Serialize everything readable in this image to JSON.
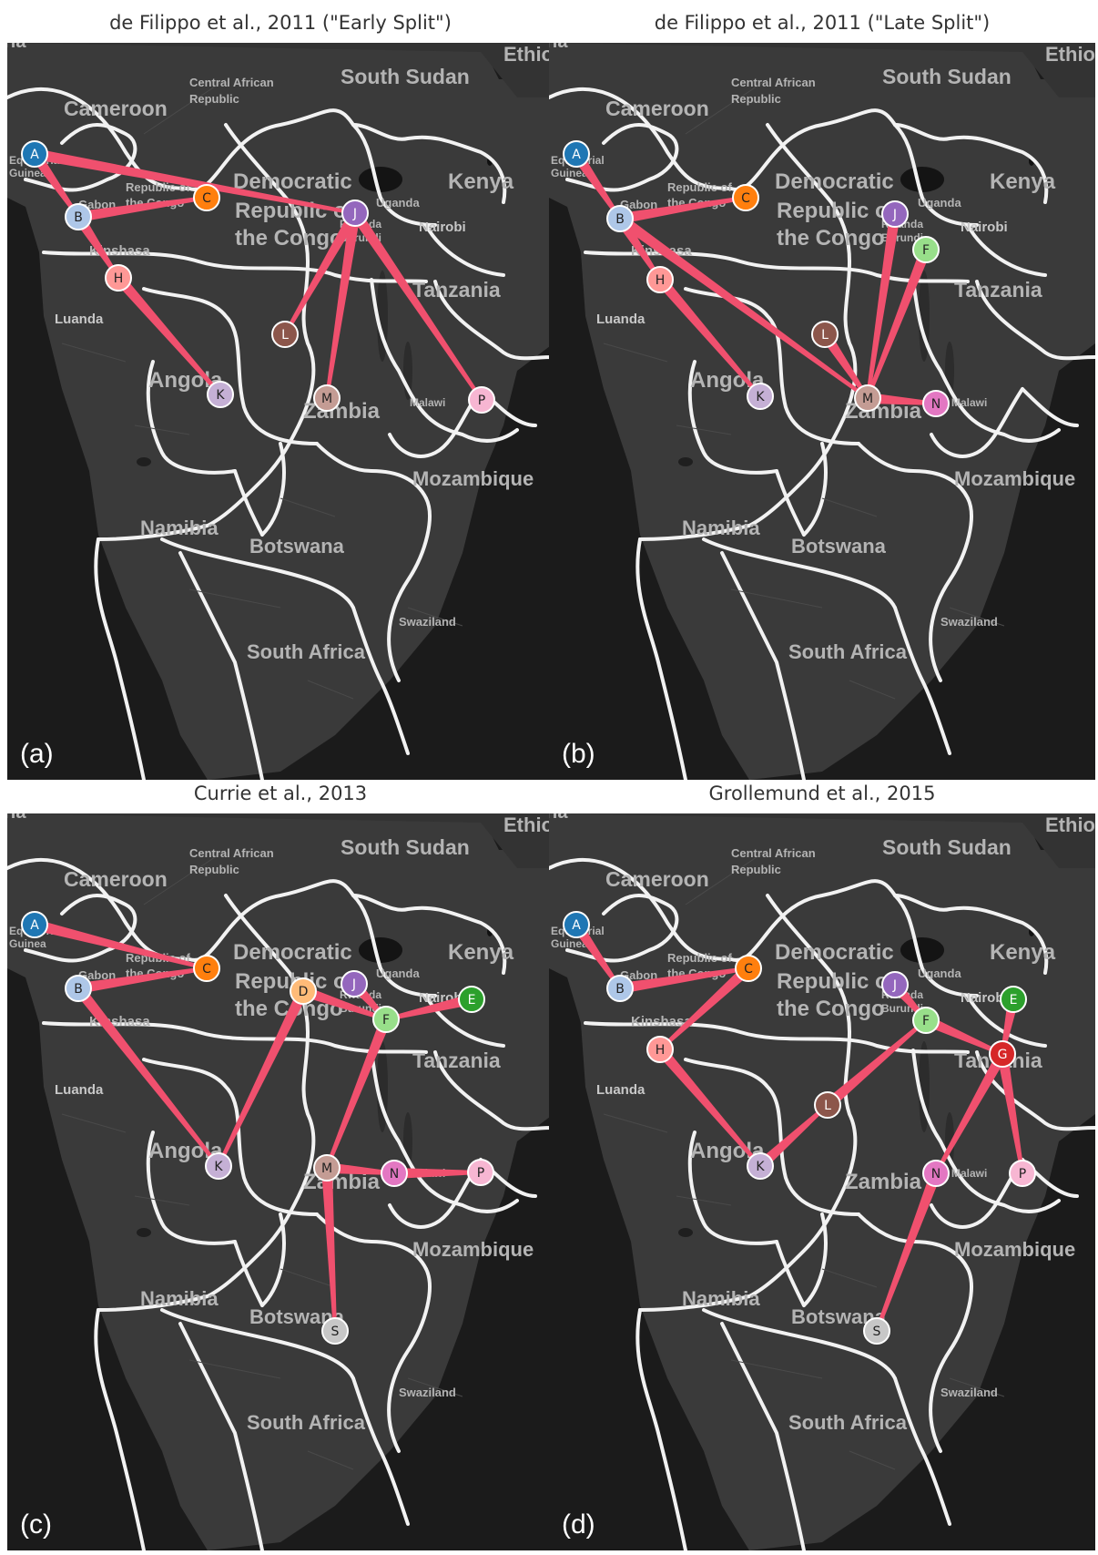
{
  "map": {
    "countries": [
      {
        "name": "Cameroon",
        "size": 23
      },
      {
        "name": "Central African",
        "size": 13
      },
      {
        "name": "Republic",
        "size": 13
      },
      {
        "name": "South Sudan",
        "size": 23
      },
      {
        "name": "Ethiop",
        "size": 22
      },
      {
        "name": "Democratic",
        "size": 24
      },
      {
        "name": "Republic of",
        "size": 24
      },
      {
        "name": "the Congo",
        "size": 24
      },
      {
        "name": "Republic of",
        "size": 13
      },
      {
        "name": "the Congo",
        "size": 13
      },
      {
        "name": "Gabon",
        "size": 13
      },
      {
        "name": "Equatorial",
        "size": 12
      },
      {
        "name": "Guinea",
        "size": 12
      },
      {
        "name": "Uganda",
        "size": 13
      },
      {
        "name": "Kenya",
        "size": 24
      },
      {
        "name": "Rwanda",
        "size": 12
      },
      {
        "name": "Burundi",
        "size": 12
      },
      {
        "name": "Kinshasa",
        "size": 15
      },
      {
        "name": "Tanzania",
        "size": 23
      },
      {
        "name": "Angola",
        "size": 24
      },
      {
        "name": "Zambia",
        "size": 24
      },
      {
        "name": "Malawi",
        "size": 12
      },
      {
        "name": "Mozambique",
        "size": 22
      },
      {
        "name": "Namibia",
        "size": 22
      },
      {
        "name": "Botswana",
        "size": 22
      },
      {
        "name": "Swaziland",
        "size": 13
      },
      {
        "name": "South Africa",
        "size": 22
      },
      {
        "name": "ria",
        "size": 20
      }
    ],
    "cities": [
      "Luanda",
      "Nairobi"
    ]
  },
  "nodes": {
    "A": {
      "label": "A",
      "color": "#1f77b4"
    },
    "B": {
      "label": "B",
      "color": "#aec7e8"
    },
    "C": {
      "label": "C",
      "color": "#ff7f0e"
    },
    "D": {
      "label": "D",
      "color": "#ffbb78"
    },
    "E": {
      "label": "E",
      "color": "#2ca02c"
    },
    "F": {
      "label": "F",
      "color": "#98df8a"
    },
    "G": {
      "label": "G",
      "color": "#d62728"
    },
    "H": {
      "label": "H",
      "color": "#ff9896"
    },
    "J": {
      "label": "J",
      "color": "#9467bd"
    },
    "K": {
      "label": "K",
      "color": "#c5b0d5"
    },
    "L": {
      "label": "L",
      "color": "#8c564b"
    },
    "M": {
      "label": "M",
      "color": "#c49c94"
    },
    "N": {
      "label": "N",
      "color": "#e377c2"
    },
    "P": {
      "label": "P",
      "color": "#f7b6d2"
    },
    "S": {
      "label": "S",
      "color": "#c7c7c7"
    }
  },
  "edge_color": "#f0506e",
  "panels": [
    {
      "title": "de Filippo et al., 2011 (\"Early Split\")",
      "tag": "(a)",
      "nodes": [
        "A",
        "B",
        "C",
        "H",
        "J",
        "K",
        "L",
        "M",
        "P"
      ],
      "edges": [
        [
          "A",
          "J"
        ],
        [
          "A",
          "B"
        ],
        [
          "B",
          "C"
        ],
        [
          "B",
          "H"
        ],
        [
          "H",
          "K"
        ],
        [
          "J",
          "L"
        ],
        [
          "J",
          "M"
        ],
        [
          "J",
          "P"
        ]
      ]
    },
    {
      "title": "de Filippo et al., 2011 (\"Late Split\")",
      "tag": "(b)",
      "nodes": [
        "A",
        "B",
        "C",
        "H",
        "J",
        "F",
        "L",
        "K",
        "M",
        "N"
      ],
      "edges": [
        [
          "A",
          "B"
        ],
        [
          "B",
          "C"
        ],
        [
          "B",
          "H"
        ],
        [
          "H",
          "K"
        ],
        [
          "B",
          "M"
        ],
        [
          "L",
          "M"
        ],
        [
          "J",
          "M"
        ],
        [
          "F",
          "M"
        ],
        [
          "M",
          "N"
        ]
      ]
    },
    {
      "title": "Currie et al., 2013",
      "tag": "(c)",
      "nodes": [
        "A",
        "B",
        "C",
        "D",
        "J",
        "E",
        "F",
        "K",
        "M",
        "N",
        "P",
        "S"
      ],
      "edges": [
        [
          "A",
          "C"
        ],
        [
          "B",
          "C"
        ],
        [
          "B",
          "K"
        ],
        [
          "D",
          "K"
        ],
        [
          "D",
          "F"
        ],
        [
          "J",
          "F"
        ],
        [
          "E",
          "F"
        ],
        [
          "F",
          "M"
        ],
        [
          "M",
          "N"
        ],
        [
          "N",
          "P"
        ],
        [
          "M",
          "S"
        ]
      ]
    },
    {
      "title": "Grollemund et al., 2015",
      "tag": "(d)",
      "nodes": [
        "A",
        "B",
        "C",
        "H",
        "K",
        "L",
        "J",
        "F",
        "E",
        "G",
        "N",
        "P",
        "S"
      ],
      "edges": [
        [
          "A",
          "B"
        ],
        [
          "B",
          "C"
        ],
        [
          "C",
          "H"
        ],
        [
          "H",
          "K"
        ],
        [
          "K",
          "L"
        ],
        [
          "L",
          "F"
        ],
        [
          "J",
          "F"
        ],
        [
          "F",
          "G"
        ],
        [
          "E",
          "G"
        ],
        [
          "G",
          "P"
        ],
        [
          "G",
          "N"
        ],
        [
          "N",
          "S"
        ]
      ]
    }
  ]
}
